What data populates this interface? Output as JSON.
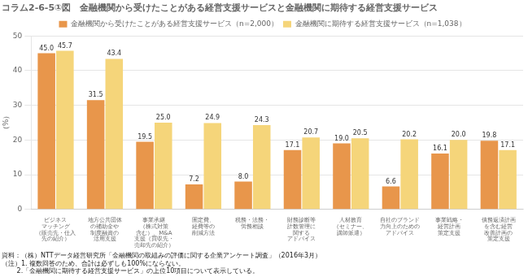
{
  "chart_data": {
    "type": "bar",
    "title": "コラム2-6-5①図　金融機関から受けたことがある経営支援サービスと金融機関に期待する経営支援サービス",
    "ylabel": "（%）",
    "categories": [
      "ビジネス\nマッチング\n（販売先・仕入\n先の紹介）",
      "地方公共団体\nの補助金や\n制度融資の\n活用支援",
      "事業承継\n（株式対策\n含む）、M&A\n支援（買収先・\n売却先の紹介）",
      "固定費、\n経費等の\n削減方法",
      "税務・法務・\n労務相談",
      "財務診断等\n計数管理に\n関する\nアドバイス",
      "人材教育\n（セミナー、\n講師派遣）",
      "自社のブランド\n力向上のための\nアドバイス",
      "事業戦略・\n経営計画\n策定支援",
      "債務返済計画\nを含む経営\n改善計画の\n策定支援"
    ],
    "series": [
      {
        "name": "金融機関から受けたことがある経営支援サービス（n=2,000）",
        "color": "#E8964B",
        "values": [
          45.0,
          31.5,
          19.5,
          7.2,
          8.0,
          17.1,
          19.0,
          6.6,
          16.1,
          19.8
        ],
        "value_labels": [
          "45.0",
          "31.5",
          "19.5",
          "7.2",
          "8.0",
          "17.1",
          "19.0",
          "6.6",
          "16.1",
          "19.8"
        ]
      },
      {
        "name": "金融機関に期待する経営支援サービス（n=1,038）",
        "color": "#F5D57A",
        "values": [
          45.7,
          43.4,
          25.0,
          24.9,
          24.3,
          20.7,
          20.5,
          20.2,
          20.0,
          17.1
        ],
        "value_labels": [
          "45.7",
          "43.4",
          "25.0",
          "24.9",
          "24.3",
          "20.7",
          "20.5",
          "20.2",
          "20.0",
          "17.1"
        ]
      }
    ],
    "ylim": [
      0,
      50
    ],
    "yticks": [
      0,
      10,
      20,
      30,
      40,
      50
    ],
    "grid": true,
    "legend": "top",
    "data_labels": true,
    "annotations": [
      "資料：（株）NTTデータ経営研究所「金融機関の取組みの評価に関する企業アンケート調査」（2016年3月）",
      "（注）1. 複数回答のため、合計は必ずしも100%にならない。",
      "　　 2.「金融機関に期待する経営支援サービス」の上位10項目について表示している。"
    ]
  }
}
